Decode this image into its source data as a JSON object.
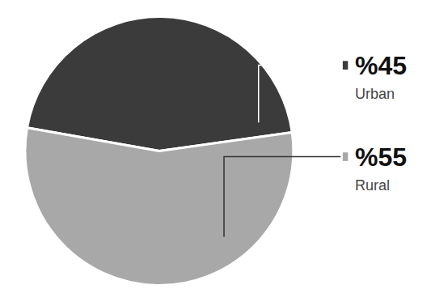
{
  "chart_data": {
    "type": "pie",
    "categories": [
      "Urban",
      "Rural"
    ],
    "values": [
      45,
      55
    ],
    "value_labels": [
      "%45",
      "%55"
    ],
    "colors": [
      "#3b3b3b",
      "#a8a8a8"
    ],
    "data_labels": true
  }
}
